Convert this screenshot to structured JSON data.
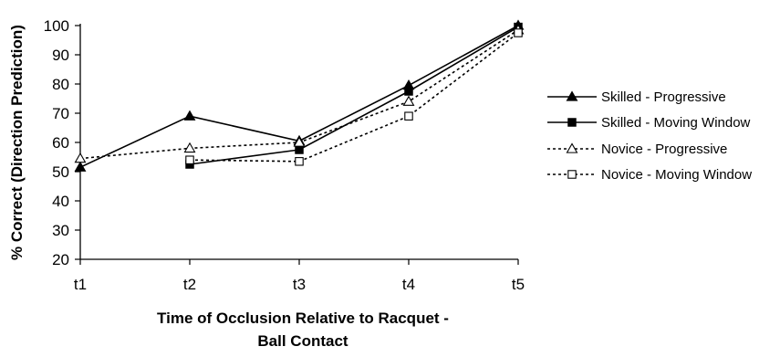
{
  "chart_data": {
    "type": "line",
    "categories": [
      "t1",
      "t2",
      "t3",
      "t4",
      "t5"
    ],
    "xlabel_lines": [
      "Time of Occlusion Relative to Racquet -",
      "Ball Contact"
    ],
    "ylabel": "% Correct (Direction Prediction)",
    "ylim": [
      20,
      100
    ],
    "yticks": [
      20,
      30,
      40,
      50,
      60,
      70,
      80,
      90,
      100
    ],
    "grid": false,
    "legend_position": "right",
    "series": [
      {
        "name": "Skilled - Progressive",
        "marker": "filled-triangle",
        "line_style": "solid",
        "values": [
          51.5,
          69,
          60.5,
          79.5,
          100
        ]
      },
      {
        "name": "Skilled - Moving Window",
        "marker": "filled-square",
        "line_style": "solid",
        "values": [
          null,
          52.5,
          57.5,
          77.5,
          99.5
        ]
      },
      {
        "name": "Novice - Progressive",
        "marker": "open-triangle",
        "line_style": "dotted",
        "values": [
          54.5,
          58,
          60,
          74,
          98.5
        ]
      },
      {
        "name": "Novice - Moving Window",
        "marker": "open-square",
        "line_style": "dotted",
        "values": [
          null,
          54,
          53.5,
          69,
          97.5
        ]
      }
    ]
  }
}
